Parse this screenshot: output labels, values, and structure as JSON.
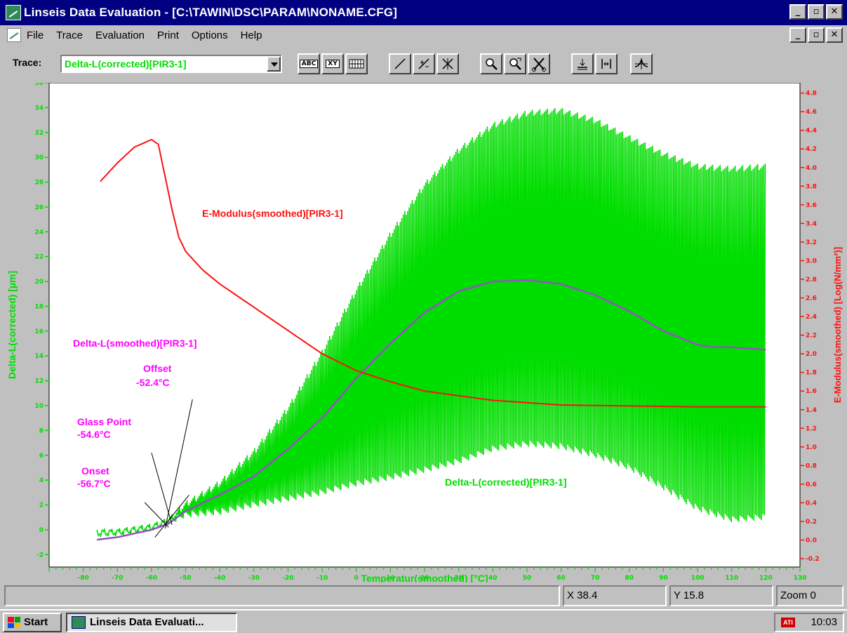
{
  "window": {
    "title": "Linseis Data Evaluation - [C:\\TAWIN\\DSC\\PARAM\\NONAME.CFG]",
    "min_glyph": "_",
    "max_glyph": "▫",
    "close_glyph": "✕"
  },
  "menu": [
    "File",
    "Trace",
    "Evaluation",
    "Print",
    "Options",
    "Help"
  ],
  "toolbar": {
    "trace_label": "Trace:",
    "trace_value": "Delta-L(corrected)[PIR3-1]",
    "abc_label": "ABC",
    "xy_label": "XY"
  },
  "status": {
    "x_label": "X 38.4",
    "y_label": "Y 15.8",
    "zoom_label": "Zoom 0"
  },
  "taskbar": {
    "start_label": "Start",
    "task_label": "Linseis Data Evaluati...",
    "tray_icon_label": "ATI",
    "clock": "10:03"
  },
  "colors": {
    "green": "#00dd00",
    "red": "#ff1010",
    "magenta": "#ff00ff",
    "purple": "#9a4ec8",
    "navy": "#000080"
  },
  "chart_data": {
    "type": "line",
    "xlabel": "Temperatur(smoothed)  [°C]",
    "ylabel_left": "Delta-L(corrected)  [µm]",
    "ylabel_right": "E-Modulus(smoothed)  [Log(N/mm²)]",
    "x_range": [
      -90,
      130
    ],
    "x_ticks": [
      -80,
      -70,
      -60,
      -50,
      -40,
      -30,
      -20,
      -10,
      0,
      10,
      20,
      30,
      40,
      50,
      60,
      70,
      80,
      90,
      100,
      110,
      120,
      130
    ],
    "y_left_range": [
      -3,
      36
    ],
    "y_left_ticks": [
      -2,
      0,
      2,
      4,
      6,
      8,
      10,
      12,
      14,
      16,
      18,
      20,
      22,
      24,
      26,
      28,
      30,
      32,
      34,
      36
    ],
    "y_right_range": [
      -0.29,
      4.91
    ],
    "y_right_ticks": [
      "-0.2",
      "0.0",
      "0.2",
      "0.4",
      "0.6",
      "0.8",
      "1.0",
      "1.2",
      "1.4",
      "1.6",
      "1.8",
      "2.0",
      "2.2",
      "2.4",
      "2.6",
      "2.8",
      "3.0",
      "3.2",
      "3.4",
      "3.6",
      "3.8",
      "4.0",
      "4.2",
      "4.4",
      "4.6",
      "4.8"
    ],
    "series": [
      {
        "name": "Delta-L(corrected)[PIR3-1]",
        "axis": "left",
        "kind": "envelope",
        "x": [
          -76,
          -70,
          -60,
          -55,
          -50,
          -40,
          -30,
          -20,
          -10,
          0,
          10,
          20,
          30,
          40,
          50,
          60,
          70,
          80,
          90,
          100,
          110,
          120
        ],
        "upper": [
          0,
          0.1,
          0.5,
          1.0,
          2.3,
          4.0,
          6.5,
          10.0,
          14.5,
          19.5,
          24.0,
          28.0,
          30.8,
          32.8,
          33.8,
          34.0,
          33.2,
          31.8,
          30.5,
          29.5,
          29.3,
          29.5
        ],
        "lower": [
          -0.5,
          -0.5,
          -0.1,
          0.4,
          1.0,
          1.2,
          1.8,
          2.3,
          2.8,
          3.5,
          4.0,
          4.6,
          5.3,
          6.3,
          6.7,
          6.5,
          5.8,
          4.8,
          3.2,
          1.5,
          0.6,
          0.8
        ]
      },
      {
        "name": "Delta-L(smoothed)[PIR3-1]",
        "axis": "left",
        "kind": "line",
        "x": [
          -76,
          -70,
          -60,
          -55,
          -50,
          -40,
          -30,
          -20,
          -10,
          0,
          10,
          20,
          30,
          40,
          50,
          60,
          70,
          80,
          90,
          100,
          105,
          110,
          120
        ],
        "y": [
          -0.8,
          -0.6,
          0.0,
          0.5,
          1.5,
          2.8,
          4.3,
          6.5,
          9.0,
          12.2,
          15.0,
          17.5,
          19.2,
          20.0,
          20.1,
          19.8,
          18.9,
          17.6,
          16.0,
          14.9,
          14.7,
          14.7,
          14.5
        ]
      },
      {
        "name": "E-Modulus(smoothed)[PIR3-1]",
        "axis": "right",
        "kind": "line",
        "x": [
          -75,
          -70,
          -65,
          -60,
          -58,
          -56,
          -54,
          -52,
          -50,
          -45,
          -40,
          -30,
          -20,
          -10,
          0,
          10,
          20,
          40,
          60,
          80,
          100,
          120
        ],
        "y": [
          3.85,
          4.05,
          4.22,
          4.3,
          4.25,
          3.9,
          3.55,
          3.25,
          3.1,
          2.9,
          2.75,
          2.5,
          2.25,
          2.0,
          1.82,
          1.7,
          1.6,
          1.5,
          1.45,
          1.44,
          1.43,
          1.43
        ]
      }
    ],
    "annotations": [
      {
        "text": "E-Modulus(smoothed)[PIR3-1]",
        "color": "red"
      },
      {
        "text": "Delta-L(smoothed)[PIR3-1]",
        "color": "magenta"
      },
      {
        "text": "Delta-L(corrected)[PIR3-1]",
        "color": "green"
      },
      {
        "text": "Offset",
        "value": "-52.4°C",
        "color": "magenta"
      },
      {
        "text": "Glass Point",
        "value": "-54.6°C",
        "color": "magenta"
      },
      {
        "text": "Onset",
        "value": "-56.7°C",
        "color": "magenta"
      }
    ]
  }
}
